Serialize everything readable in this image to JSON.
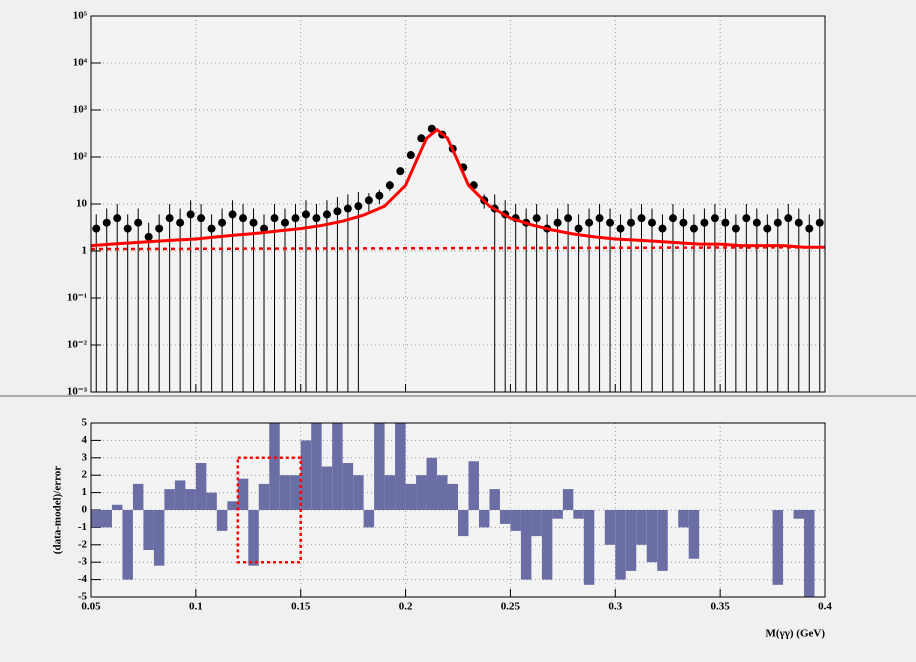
{
  "chart_data": [
    {
      "type": "scatter",
      "log_y": true,
      "grid": true,
      "color": "#000000",
      "xlim": [
        0.05,
        0.4
      ],
      "ylim": [
        0.001,
        100000
      ],
      "xticks": [
        0.05,
        0.1,
        0.15,
        0.2,
        0.25,
        0.3,
        0.35,
        0.4
      ],
      "yticks": [
        {
          "value": 0.001,
          "label": "10⁻³"
        },
        {
          "value": 0.01,
          "label": "10⁻²"
        },
        {
          "value": 0.1,
          "label": "10⁻¹"
        },
        1,
        10,
        {
          "value": 100,
          "label": "10²"
        },
        {
          "value": 1000,
          "label": "10³"
        },
        {
          "value": 10000,
          "label": "10⁴"
        },
        {
          "value": 100000,
          "label": "10⁵"
        }
      ],
      "x": [
        0.0525,
        0.0575,
        0.0625,
        0.0675,
        0.0725,
        0.0775,
        0.0825,
        0.0875,
        0.0925,
        0.0975,
        0.1025,
        0.1075,
        0.1125,
        0.1175,
        0.1225,
        0.1275,
        0.1325,
        0.1375,
        0.1425,
        0.1475,
        0.1525,
        0.1575,
        0.1625,
        0.1675,
        0.1725,
        0.1775,
        0.1825,
        0.1875,
        0.1925,
        0.1975,
        0.2025,
        0.2075,
        0.2125,
        0.2175,
        0.2225,
        0.2275,
        0.2325,
        0.2375,
        0.2425,
        0.2475,
        0.2525,
        0.2575,
        0.2625,
        0.2675,
        0.2725,
        0.2775,
        0.2825,
        0.2875,
        0.2925,
        0.2975,
        0.3025,
        0.3075,
        0.3125,
        0.3175,
        0.3225,
        0.3275,
        0.3325,
        0.3375,
        0.3425,
        0.3475,
        0.3525,
        0.3575,
        0.3625,
        0.3675,
        0.3725,
        0.3775,
        0.3825,
        0.3875,
        0.3925,
        0.3975
      ],
      "values": [
        3,
        4,
        5,
        3,
        4,
        2,
        3,
        5,
        4,
        6,
        5,
        3,
        4,
        6,
        5,
        4,
        3,
        5,
        4,
        5,
        6,
        5,
        6,
        7,
        8,
        9,
        12,
        15,
        25,
        50,
        110,
        250,
        400,
        300,
        150,
        60,
        25,
        12,
        8,
        6,
        5,
        4,
        5,
        3,
        4,
        5,
        3,
        4,
        5,
        4,
        3,
        4,
        5,
        4,
        3,
        5,
        4,
        3,
        4,
        5,
        4,
        3,
        5,
        4,
        3,
        4,
        5,
        4,
        3,
        4
      ],
      "errors": [
        3,
        4,
        5,
        3,
        4,
        2,
        3,
        5,
        4,
        6,
        5,
        3,
        4,
        6,
        5,
        4,
        3,
        5,
        4,
        5,
        6,
        5,
        6,
        7,
        8,
        9,
        5,
        5,
        6,
        8,
        11,
        16,
        20,
        17,
        12,
        8,
        6,
        4,
        8,
        6,
        5,
        4,
        5,
        3,
        4,
        5,
        3,
        4,
        5,
        4,
        3,
        4,
        5,
        4,
        3,
        5,
        4,
        3,
        4,
        5,
        4,
        3,
        5,
        4,
        3,
        4,
        5,
        4,
        3,
        4
      ],
      "fit": {
        "color": "#ff0000",
        "x": [
          0.05,
          0.06,
          0.07,
          0.08,
          0.09,
          0.1,
          0.11,
          0.12,
          0.13,
          0.14,
          0.15,
          0.16,
          0.17,
          0.18,
          0.19,
          0.2,
          0.205,
          0.21,
          0.215,
          0.22,
          0.225,
          0.23,
          0.24,
          0.25,
          0.26,
          0.27,
          0.28,
          0.29,
          0.3,
          0.31,
          0.32,
          0.33,
          0.34,
          0.35,
          0.36,
          0.37,
          0.38,
          0.39,
          0.4
        ],
        "values": [
          1.3,
          1.4,
          1.5,
          1.6,
          1.7,
          1.8,
          2.0,
          2.2,
          2.4,
          2.7,
          3.0,
          3.5,
          4.3,
          5.8,
          9,
          25,
          80,
          250,
          380,
          250,
          80,
          25,
          9,
          5,
          3.6,
          2.8,
          2.3,
          2.0,
          1.8,
          1.7,
          1.6,
          1.5,
          1.4,
          1.4,
          1.3,
          1.3,
          1.3,
          1.2,
          1.2
        ]
      },
      "background": {
        "color": "#ff0000",
        "x": [
          0.05,
          0.4
        ],
        "values": [
          1.1,
          1.2
        ]
      }
    },
    {
      "type": "histogram",
      "grid": true,
      "color": "#6b6ea5",
      "xlim": [
        0.05,
        0.4
      ],
      "ylim": [
        -5,
        5
      ],
      "xticks": [
        0.05,
        0.1,
        0.15,
        0.2,
        0.25,
        0.3,
        0.35,
        0.4
      ],
      "yticks": [
        -5,
        -4,
        -3,
        -2,
        -1,
        0,
        1,
        2,
        3,
        4,
        5
      ],
      "x_label": "M(γγ) (GeV)",
      "y_label": "(data-model)/error",
      "bins": [
        0.05,
        0.055,
        0.06,
        0.065,
        0.07,
        0.075,
        0.08,
        0.085,
        0.09,
        0.095,
        0.1,
        0.105,
        0.11,
        0.115,
        0.12,
        0.125,
        0.13,
        0.135,
        0.14,
        0.145,
        0.15,
        0.155,
        0.16,
        0.165,
        0.17,
        0.175,
        0.18,
        0.185,
        0.19,
        0.195,
        0.2,
        0.205,
        0.21,
        0.215,
        0.22,
        0.225,
        0.23,
        0.235,
        0.24,
        0.245,
        0.25,
        0.255,
        0.26,
        0.265,
        0.27,
        0.275,
        0.28,
        0.285,
        0.29,
        0.295,
        0.3,
        0.305,
        0.31,
        0.315,
        0.32,
        0.325,
        0.33,
        0.335,
        0.34,
        0.345,
        0.35,
        0.355,
        0.36,
        0.365,
        0.37,
        0.375,
        0.38,
        0.385,
        0.39,
        0.395,
        0.4
      ],
      "values": [
        -1.0,
        -1.0,
        0.3,
        -4.0,
        1.5,
        -2.3,
        -3.2,
        1.2,
        1.7,
        1.2,
        2.7,
        1.0,
        -1.2,
        0.5,
        1.8,
        -3.2,
        1.5,
        5.0,
        2.0,
        2.0,
        4.0,
        5.0,
        2.5,
        5.0,
        2.7,
        2.0,
        -1.0,
        5.0,
        2.0,
        5.0,
        1.5,
        2.0,
        3.0,
        2.0,
        1.5,
        -1.5,
        2.8,
        -1.0,
        1.2,
        -0.8,
        -1.2,
        -4.0,
        -1.5,
        -4.0,
        -0.5,
        1.2,
        -0.5,
        -4.3,
        0.0,
        -2.0,
        -4.0,
        -3.5,
        -2.0,
        -3.0,
        -3.5,
        0.0,
        -1.0,
        -2.8,
        0.0,
        0.0,
        0.0,
        0.0,
        0.0,
        0.0,
        0.0,
        -4.3,
        0.0,
        -0.5,
        -5.0,
        0.0
      ],
      "highlight": {
        "xlim": [
          0.12,
          0.15
        ],
        "ylim": [
          -3,
          3
        ],
        "color": "#ff0000"
      }
    }
  ]
}
